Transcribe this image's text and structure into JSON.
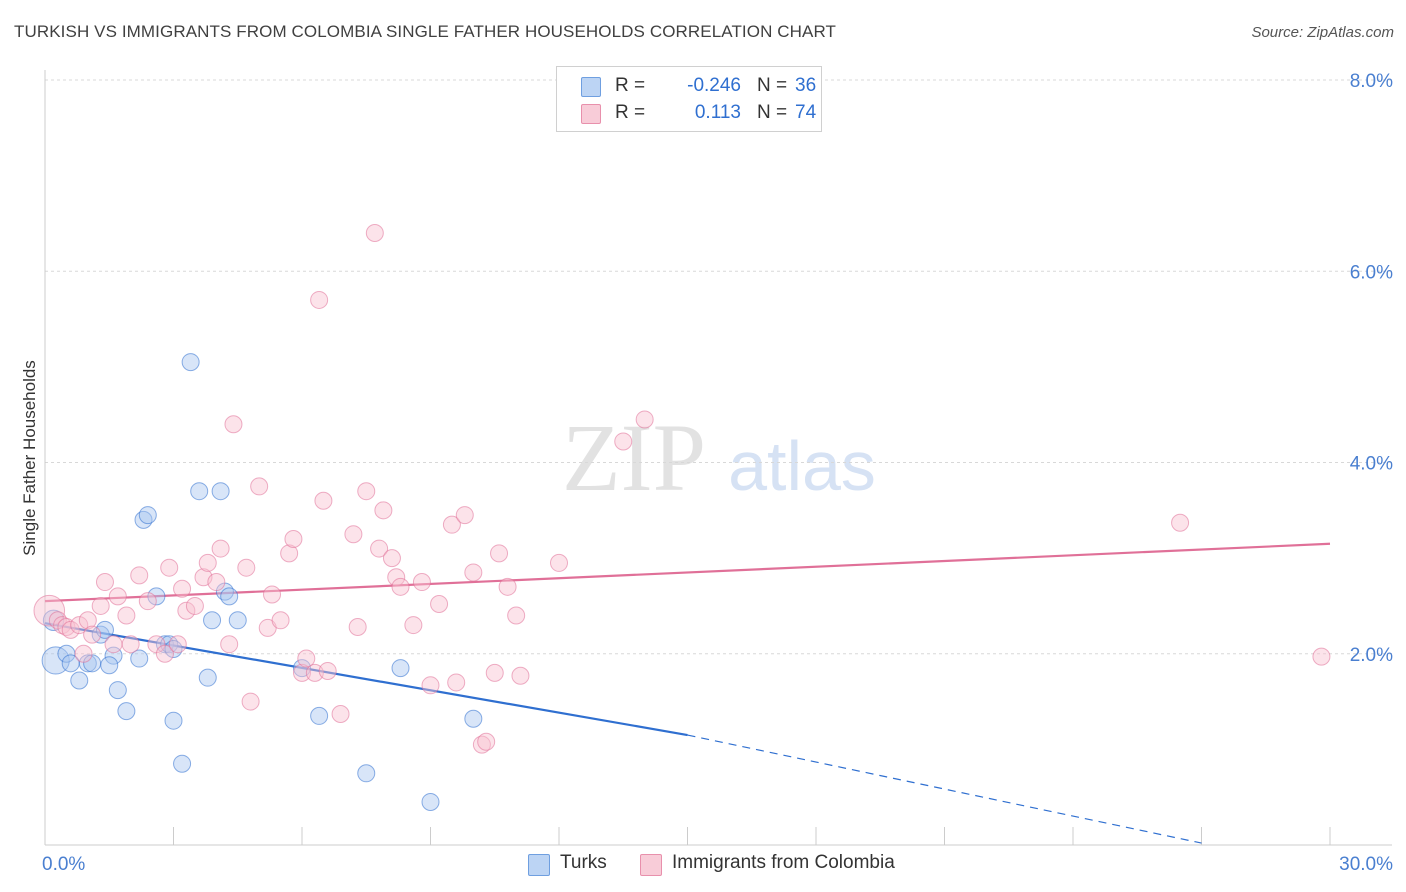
{
  "title": "TURKISH VS IMMIGRANTS FROM COLOMBIA SINGLE FATHER HOUSEHOLDS CORRELATION CHART",
  "source": "Source: ZipAtlas.com",
  "watermark": {
    "zip": "ZIP",
    "atlas": "atlas"
  },
  "legend": {
    "r_label": "R =",
    "n_label": "N =",
    "entries": [
      {
        "r": "-0.246",
        "n": "36",
        "fill": "#a8c6f0",
        "stroke": "#6f9fe0"
      },
      {
        "r": "0.113",
        "n": "74",
        "fill": "#f8c0d0",
        "stroke": "#e890ac"
      }
    ]
  },
  "bottom_legend": [
    {
      "label": "Turks",
      "fill": "#a8c6f0",
      "stroke": "#6f9fe0"
    },
    {
      "label": "Immigrants from Colombia",
      "fill": "#f8c0d0",
      "stroke": "#e890ac"
    }
  ],
  "chart_data": {
    "type": "scatter",
    "title": "TURKISH VS IMMIGRANTS FROM COLOMBIA SINGLE FATHER HOUSEHOLDS CORRELATION CHART",
    "xlabel": "",
    "ylabel": "Single Father Households",
    "xlim": [
      0,
      30
    ],
    "ylim": [
      0,
      8.2
    ],
    "x_tick_labels": [
      {
        "value": 0,
        "label": "0.0%"
      },
      {
        "value": 30,
        "label": "30.0%"
      }
    ],
    "y_tick_labels": [
      {
        "value": 2,
        "label": "2.0%"
      },
      {
        "value": 4,
        "label": "4.0%"
      },
      {
        "value": 6,
        "label": "6.0%"
      },
      {
        "value": 8,
        "label": "8.0%"
      }
    ],
    "grid": "horizontal dashed",
    "legend_position": "top-center",
    "colors": {
      "turks": "#2f6fd0",
      "colombia": "#e07098",
      "tick_label": "#4a7fd0"
    },
    "series": [
      {
        "name": "Turks",
        "color": "#2f6fd0",
        "fill": "#a8c6f0",
        "trend": {
          "x0": 0,
          "y0": 2.32,
          "x1": 15.0,
          "y1": 1.15,
          "dashed_to_x": 27.0,
          "dashed_to_y": 0.02
        },
        "points": [
          [
            0.2,
            2.35,
            1.2
          ],
          [
            0.25,
            1.93,
            1.6
          ],
          [
            0.5,
            2.0,
            1
          ],
          [
            0.6,
            1.9,
            1
          ],
          [
            0.8,
            1.72,
            1
          ],
          [
            1.0,
            1.9,
            1
          ],
          [
            1.1,
            1.9,
            1
          ],
          [
            1.3,
            2.2,
            1
          ],
          [
            1.4,
            2.25,
            1
          ],
          [
            1.6,
            1.98,
            1
          ],
          [
            1.7,
            1.62,
            1
          ],
          [
            1.9,
            1.4,
            1
          ],
          [
            2.3,
            3.4,
            1
          ],
          [
            2.4,
            3.45,
            1
          ],
          [
            2.6,
            2.6,
            1
          ],
          [
            2.8,
            2.1,
            1
          ],
          [
            2.9,
            2.1,
            1
          ],
          [
            3.0,
            2.05,
            1
          ],
          [
            3.0,
            1.3,
            1
          ],
          [
            3.2,
            0.85,
            1
          ],
          [
            3.4,
            5.05,
            1
          ],
          [
            3.6,
            3.7,
            1
          ],
          [
            3.8,
            1.75,
            1
          ],
          [
            3.9,
            2.35,
            1
          ],
          [
            4.1,
            3.7,
            1
          ],
          [
            4.2,
            2.65,
            1
          ],
          [
            4.3,
            2.6,
            1
          ],
          [
            4.5,
            2.35,
            1
          ],
          [
            6.0,
            1.85,
            1
          ],
          [
            6.4,
            1.35,
            1
          ],
          [
            7.5,
            0.75,
            1
          ],
          [
            8.3,
            1.85,
            1
          ],
          [
            9.0,
            0.45,
            1
          ],
          [
            10.0,
            1.32,
            1
          ],
          [
            2.2,
            1.95,
            1
          ],
          [
            1.5,
            1.88,
            1
          ]
        ]
      },
      {
        "name": "Immigrants from Colombia",
        "color": "#e07098",
        "fill": "#f8c0d0",
        "trend": {
          "x0": 0,
          "y0": 2.55,
          "x1": 30.0,
          "y1": 3.15
        },
        "points": [
          [
            0.1,
            2.45,
            1.8
          ],
          [
            0.3,
            2.35,
            1
          ],
          [
            0.4,
            2.3,
            1
          ],
          [
            0.5,
            2.28,
            1
          ],
          [
            0.6,
            2.25,
            1
          ],
          [
            0.8,
            2.3,
            1
          ],
          [
            0.9,
            2.0,
            1
          ],
          [
            1.0,
            2.35,
            1
          ],
          [
            1.1,
            2.2,
            1
          ],
          [
            1.3,
            2.5,
            1
          ],
          [
            1.4,
            2.75,
            1
          ],
          [
            1.6,
            2.1,
            1
          ],
          [
            1.7,
            2.6,
            1
          ],
          [
            1.9,
            2.4,
            1
          ],
          [
            2.0,
            2.1,
            1
          ],
          [
            2.2,
            2.82,
            1
          ],
          [
            2.4,
            2.55,
            1
          ],
          [
            2.6,
            2.1,
            1
          ],
          [
            2.8,
            2.0,
            1
          ],
          [
            2.9,
            2.9,
            1
          ],
          [
            3.1,
            2.1,
            1
          ],
          [
            3.2,
            2.68,
            1
          ],
          [
            3.3,
            2.45,
            1
          ],
          [
            3.5,
            2.5,
            1
          ],
          [
            3.7,
            2.8,
            1
          ],
          [
            3.8,
            2.95,
            1
          ],
          [
            4.0,
            2.75,
            1
          ],
          [
            4.1,
            3.1,
            1
          ],
          [
            4.3,
            2.1,
            1
          ],
          [
            4.4,
            4.4,
            1
          ],
          [
            4.7,
            2.9,
            1
          ],
          [
            4.8,
            1.5,
            1
          ],
          [
            5.0,
            3.75,
            1
          ],
          [
            5.2,
            2.27,
            1
          ],
          [
            5.3,
            2.62,
            1
          ],
          [
            5.5,
            2.35,
            1
          ],
          [
            5.7,
            3.05,
            1
          ],
          [
            5.8,
            3.2,
            1
          ],
          [
            6.0,
            1.8,
            1
          ],
          [
            6.1,
            1.95,
            1
          ],
          [
            6.3,
            1.8,
            1
          ],
          [
            6.4,
            5.7,
            1
          ],
          [
            6.5,
            3.6,
            1
          ],
          [
            6.6,
            1.82,
            1
          ],
          [
            6.9,
            1.37,
            1
          ],
          [
            7.2,
            3.25,
            1
          ],
          [
            7.3,
            2.28,
            1
          ],
          [
            7.5,
            3.7,
            1
          ],
          [
            7.7,
            6.4,
            1
          ],
          [
            7.8,
            3.1,
            1
          ],
          [
            7.9,
            3.5,
            1
          ],
          [
            8.1,
            3.0,
            1
          ],
          [
            8.2,
            2.8,
            1
          ],
          [
            8.3,
            2.7,
            1
          ],
          [
            8.6,
            2.3,
            1
          ],
          [
            8.8,
            2.75,
            1
          ],
          [
            9.0,
            1.67,
            1
          ],
          [
            9.2,
            2.52,
            1
          ],
          [
            9.5,
            3.35,
            1
          ],
          [
            9.6,
            1.7,
            1
          ],
          [
            9.8,
            3.45,
            1
          ],
          [
            10.0,
            2.85,
            1
          ],
          [
            10.2,
            1.05,
            1
          ],
          [
            10.3,
            1.08,
            1
          ],
          [
            10.5,
            1.8,
            1
          ],
          [
            10.6,
            3.05,
            1
          ],
          [
            10.8,
            2.7,
            1
          ],
          [
            11.1,
            1.77,
            1
          ],
          [
            12.0,
            2.95,
            1
          ],
          [
            14.0,
            4.45,
            1
          ],
          [
            13.5,
            4.22,
            1
          ],
          [
            26.5,
            3.37,
            1
          ],
          [
            29.8,
            1.97,
            1
          ],
          [
            11.0,
            2.4,
            1
          ]
        ]
      }
    ]
  }
}
